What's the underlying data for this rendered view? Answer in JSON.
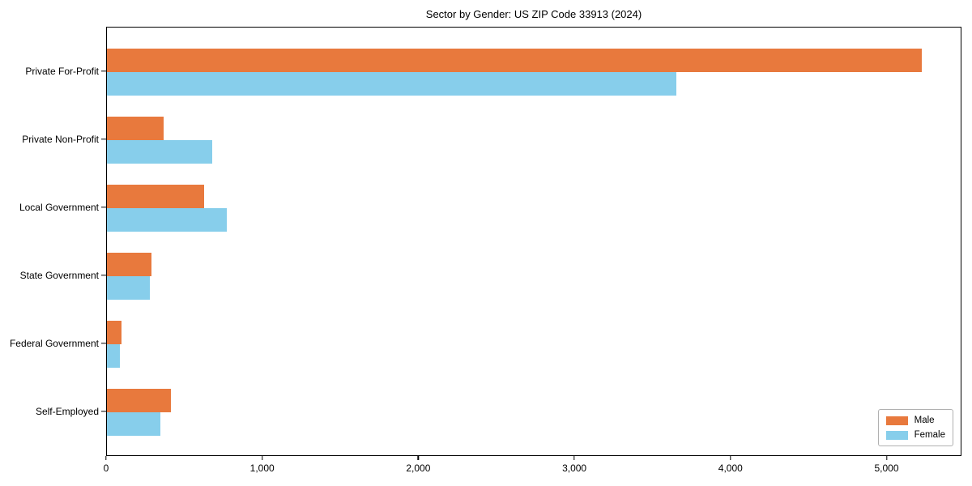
{
  "chart_data": {
    "type": "bar",
    "orientation": "horizontal",
    "title": "Sector by Gender: US ZIP Code 33913 (2024)",
    "categories": [
      "Private For-Profit",
      "Private Non-Profit",
      "Local Government",
      "State Government",
      "Federal Government",
      "Self-Employed"
    ],
    "series": [
      {
        "name": "Male",
        "color": "#e8793d",
        "values": [
          5220,
          365,
          625,
          285,
          95,
          410
        ]
      },
      {
        "name": "Female",
        "color": "#87ceeb",
        "values": [
          3650,
          675,
          770,
          275,
          85,
          340
        ]
      }
    ],
    "xlim": [
      0,
      5480
    ],
    "xticks": [
      0,
      1000,
      2000,
      3000,
      4000,
      5000
    ],
    "xtick_labels": [
      "0",
      "1,000",
      "2,000",
      "3,000",
      "4,000",
      "5,000"
    ],
    "xlabel": "",
    "ylabel": "",
    "grid": false,
    "legend": {
      "position": "lower right"
    },
    "colors": {
      "male": "#e8793d",
      "female": "#87ceeb",
      "spine": "#000000",
      "legend_border": "#b0b0b0"
    }
  }
}
